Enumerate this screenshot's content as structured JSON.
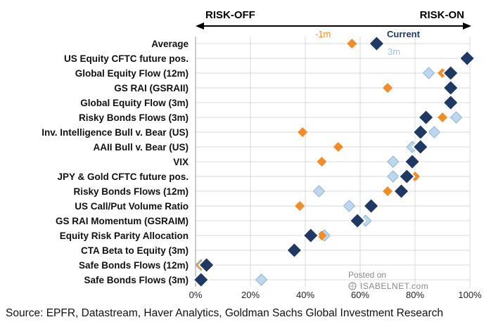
{
  "chart_data": {
    "type": "scatter",
    "direction_labels": {
      "left": "RISK-OFF",
      "right": "RISK-ON"
    },
    "x_ticks": [
      "0%",
      "20%",
      "40%",
      "60%",
      "80%",
      "100%"
    ],
    "xlim": [
      0,
      100
    ],
    "categories": [
      "Average",
      "US Equity CFTC future pos.",
      "Global Equity Flow (12m)",
      "GS RAI (GSRAII)",
      "Global Equity Flow (3m)",
      "Risky Bonds Flows (3m)",
      "Inv. Intelligence Bull v. Bear (US)",
      "AAII Bull v. Bear (US)",
      "VIX",
      "JPY & Gold CFTC future pos.",
      "Risky Bonds Flows (12m)",
      "US Call/Put Volume Ratio",
      "GS RAI Momentum (GSRAIM)",
      "Equity Risk Parity Allocation",
      "CTA Beta to Equity (3m)",
      "Safe Bonds Flows (12m)",
      "Safe Bonds Flows (3m)"
    ],
    "series": [
      {
        "name": "-1m",
        "color": "#F28C28",
        "values": [
          57,
          99,
          90,
          70,
          93,
          90,
          39,
          52,
          46,
          80,
          70,
          38,
          59,
          46,
          36,
          2,
          2
        ]
      },
      {
        "name": "Current",
        "color": "#1F3864",
        "values": [
          66,
          99,
          93,
          93,
          93,
          84,
          82,
          82,
          79,
          77,
          75,
          64,
          59,
          42,
          36,
          4,
          2
        ]
      },
      {
        "name": "3m",
        "color": "#BDD7EE",
        "values": [
          65,
          100,
          85,
          94,
          92,
          95,
          87,
          79,
          72,
          72,
          45,
          56,
          62,
          47,
          36,
          2,
          24
        ]
      }
    ]
  },
  "source_text": "Source: EPFR, Datastream, Haver Analytics, Goldman Sachs Global Investment Research",
  "watermark": {
    "line1": "Posted on",
    "line2": "ISABELNET.com"
  }
}
